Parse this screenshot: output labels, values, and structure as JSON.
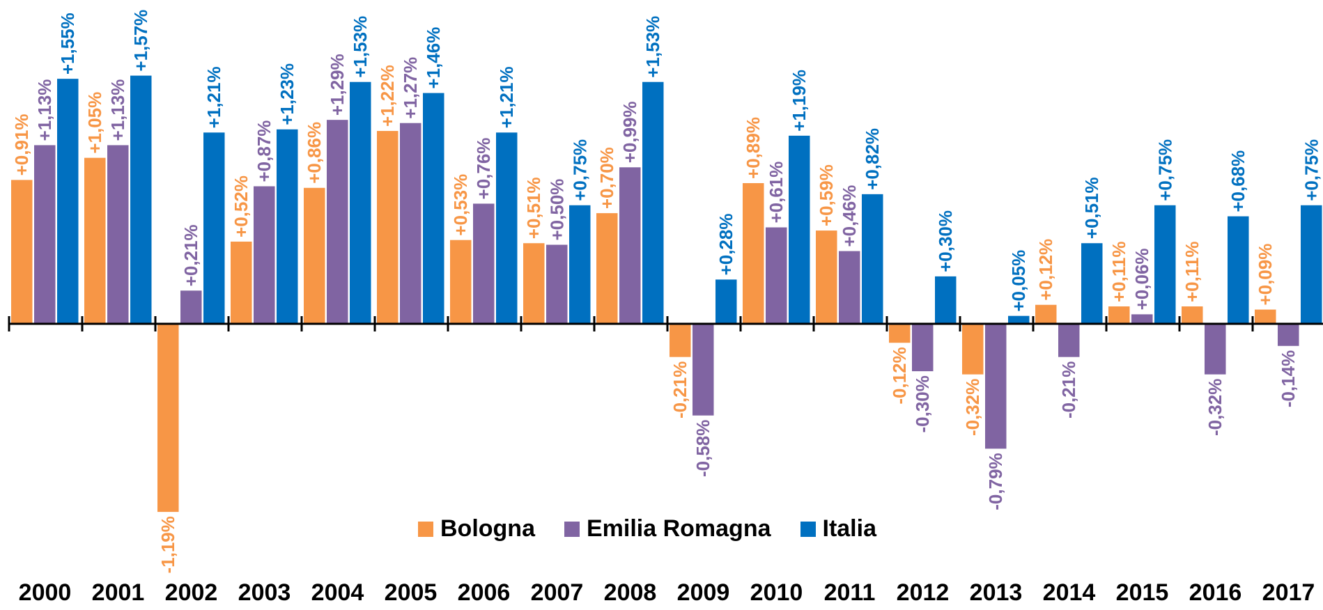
{
  "chart_data": {
    "type": "bar",
    "title": "",
    "xlabel": "",
    "ylabel": "",
    "ylim": [
      -1.3,
      1.7
    ],
    "grid": false,
    "legend_position": "bottom-center",
    "categories": [
      "2000",
      "2001",
      "2002",
      "2003",
      "2004",
      "2005",
      "2006",
      "2007",
      "2008",
      "2009",
      "2010",
      "2011",
      "2012",
      "2013",
      "2014",
      "2015",
      "2016",
      "2017"
    ],
    "series": [
      {
        "name": "Bologna",
        "color": "#F79646",
        "values": [
          0.91,
          1.05,
          -1.19,
          0.52,
          0.86,
          1.22,
          0.53,
          0.51,
          0.7,
          -0.21,
          0.89,
          0.59,
          -0.12,
          -0.32,
          0.12,
          0.11,
          0.11,
          0.09
        ],
        "labels": [
          "+0,91%",
          "+1,05%",
          "-1,19%",
          "+0,52%",
          "+0,86%",
          "+1,22%",
          "+0,53%",
          "+0,51%",
          "+0,70%",
          "-0,21%",
          "+0,89%",
          "+0,59%",
          "-0,12%",
          "-0,32%",
          "+0,12%",
          "+0,11%",
          "+0,11%",
          "+0,09%"
        ]
      },
      {
        "name": "Emilia Romagna",
        "color": "#8064A2",
        "values": [
          1.13,
          1.13,
          0.21,
          0.87,
          1.29,
          1.27,
          0.76,
          0.5,
          0.99,
          -0.58,
          0.61,
          0.46,
          -0.3,
          -0.79,
          -0.21,
          0.06,
          -0.32,
          -0.14
        ],
        "labels": [
          "+1,13%",
          "+1,13%",
          "+0,21%",
          "+0,87%",
          "+1,29%",
          "+1,27%",
          "+0,76%",
          "+0,50%",
          "+0,99%",
          "-0,58%",
          "+0,61%",
          "+0,46%",
          "-0,30%",
          "-0,79%",
          "-0,21%",
          "+0,06%",
          "-0,32%",
          "-0,14%"
        ]
      },
      {
        "name": "Italia",
        "color": "#0070C0",
        "values": [
          1.55,
          1.57,
          1.21,
          1.23,
          1.53,
          1.46,
          1.21,
          0.75,
          1.53,
          0.28,
          1.19,
          0.82,
          0.3,
          0.05,
          0.51,
          0.75,
          0.68,
          0.75
        ],
        "labels": [
          "+1,55%",
          "+1,57%",
          "+1,21%",
          "+1,23%",
          "+1,53%",
          "+1,46%",
          "+1,21%",
          "+0,75%",
          "+1,53%",
          "+0,28%",
          "+1,19%",
          "+0,82%",
          "+0,30%",
          "+0,05%",
          "+0,51%",
          "+0,75%",
          "+0,68%",
          "+0,75%"
        ]
      }
    ]
  },
  "legend": {
    "items": [
      {
        "label": "Bologna",
        "color": "#F79646"
      },
      {
        "label": "Emilia Romagna",
        "color": "#8064A2"
      },
      {
        "label": "Italia",
        "color": "#0070C0"
      }
    ]
  }
}
